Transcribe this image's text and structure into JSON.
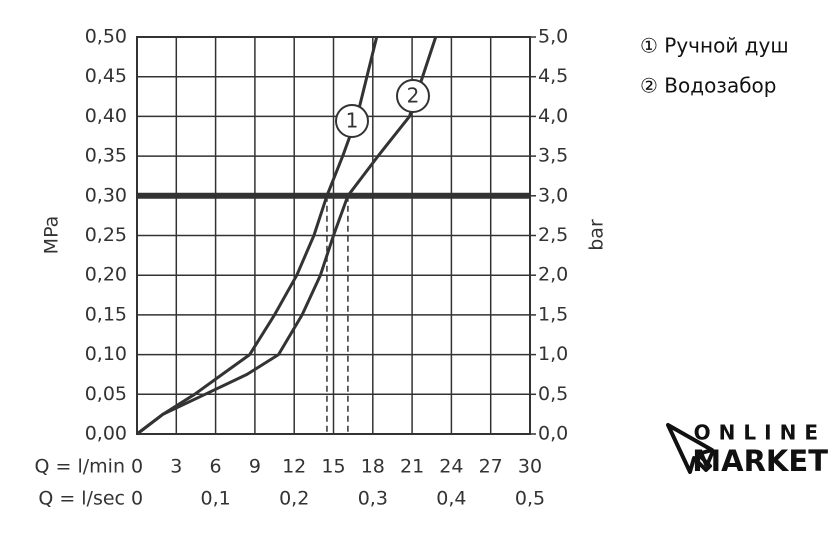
{
  "chart_data": {
    "type": "line",
    "xlabel": "Q = l/min",
    "x2label": "Q = l/sec",
    "ylabel": "MPa",
    "y2label": "bar",
    "xlim": [
      0,
      30
    ],
    "xticks": [
      0,
      3,
      6,
      9,
      12,
      15,
      18,
      21,
      24,
      27,
      30
    ],
    "x2lim": [
      0,
      0.5
    ],
    "x2ticks": [
      0,
      {
        "value": 0.1,
        "label": "0,1"
      },
      {
        "value": 0.2,
        "label": "0,2"
      },
      {
        "value": 0.3,
        "label": "0,3"
      },
      {
        "value": 0.4,
        "label": "0,4"
      },
      {
        "value": 0.5,
        "label": "0,5"
      }
    ],
    "ylim": [
      0,
      0.5
    ],
    "yticks": [
      {
        "value": 0,
        "label": "0,00"
      },
      {
        "value": 0.05,
        "label": "0,05"
      },
      {
        "value": 0.1,
        "label": "0,10"
      },
      {
        "value": 0.15,
        "label": "0,15"
      },
      {
        "value": 0.2,
        "label": "0,20"
      },
      {
        "value": 0.25,
        "label": "0,25"
      },
      {
        "value": 0.3,
        "label": "0,30"
      },
      {
        "value": 0.35,
        "label": "0,35"
      },
      {
        "value": 0.4,
        "label": "0,40"
      },
      {
        "value": 0.45,
        "label": "0,45"
      },
      {
        "value": 0.5,
        "label": "0,50"
      }
    ],
    "y2lim": [
      0,
      5
    ],
    "y2ticks": [
      {
        "value": 0,
        "label": "0,0"
      },
      {
        "value": 0.5,
        "label": "0,5"
      },
      {
        "value": 1,
        "label": "1,0"
      },
      {
        "value": 1.5,
        "label": "1,5"
      },
      {
        "value": 2,
        "label": "2,0"
      },
      {
        "value": 2.5,
        "label": "2,5"
      },
      {
        "value": 3,
        "label": "3,0"
      },
      {
        "value": 3.5,
        "label": "3,5"
      },
      {
        "value": 4,
        "label": "4,0"
      },
      {
        "value": 4.5,
        "label": "4,5"
      },
      {
        "value": 5,
        "label": "5,0"
      }
    ],
    "grid": true,
    "hline": 0.3,
    "vlines": [
      14.5,
      16.1
    ],
    "series": [
      {
        "name": "① Ручной душ",
        "label": "1",
        "color": "#333333",
        "x": [
          0,
          2,
          4.4,
          6.5,
          8.6,
          10.5,
          12.2,
          13.5,
          14.5,
          15.7,
          16.8,
          18.3
        ],
        "values": [
          0,
          0.025,
          0.05,
          0.075,
          0.1,
          0.15,
          0.2,
          0.25,
          0.3,
          0.35,
          0.4,
          0.5
        ]
      },
      {
        "name": "② Водозабор",
        "label": "2",
        "color": "#333333",
        "x": [
          0,
          2,
          5.2,
          8.4,
          10.8,
          12.6,
          14,
          15,
          16.1,
          18.4,
          20.8,
          22.8
        ],
        "values": [
          0,
          0.025,
          0.05,
          0.075,
          0.1,
          0.15,
          0.2,
          0.25,
          0.3,
          0.35,
          0.4,
          0.5
        ]
      }
    ]
  },
  "logo": {
    "line1": "ONLINE",
    "line2": "MARKET"
  }
}
